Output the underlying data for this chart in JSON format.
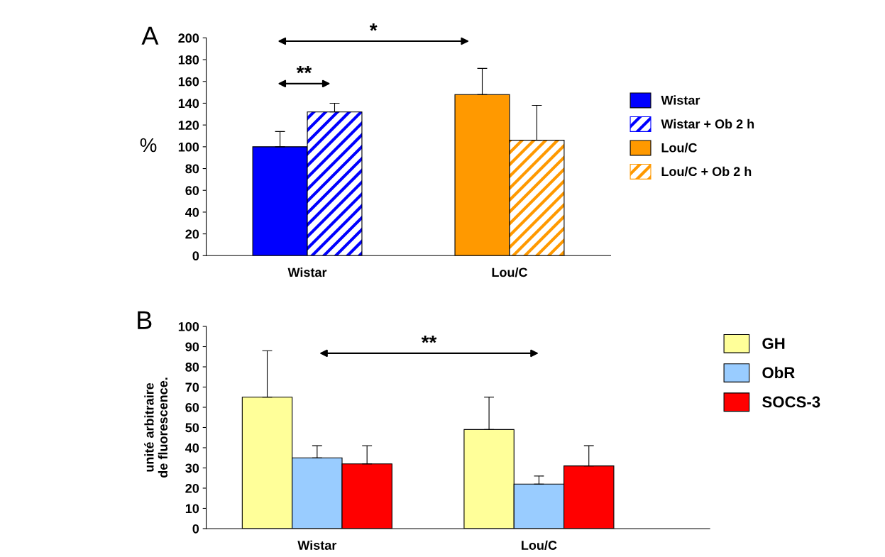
{
  "chart_data": [
    {
      "type": "bar",
      "title": "A",
      "ylabel": "%",
      "categories": [
        "Wistar",
        "Lou/C"
      ],
      "series": [
        {
          "name": "Wistar",
          "color": "#0000ff",
          "values": [
            100,
            null
          ],
          "errors": [
            [
              100,
              114
            ],
            null
          ]
        },
        {
          "name": "Wistar + Ob 2 h",
          "color": "#0000ff",
          "values": [
            132,
            null
          ],
          "errors": [
            [
              132,
              140
            ],
            null
          ]
        },
        {
          "name": "Lou/C",
          "color": "#ff9900",
          "values": [
            null,
            148
          ],
          "errors": [
            null,
            [
              148,
              172
            ]
          ]
        },
        {
          "name": "Lou/C + Ob 2 h",
          "color": "#ff9900",
          "values": [
            null,
            106
          ],
          "errors": [
            null,
            [
              106,
              138
            ]
          ]
        }
      ],
      "ylim": [
        0,
        200
      ],
      "yticks": [
        0,
        20,
        40,
        60,
        80,
        100,
        120,
        140,
        160,
        180,
        200
      ],
      "legend": "right",
      "annotations": [
        "**",
        "*"
      ]
    },
    {
      "type": "bar",
      "title": "B",
      "ylabel": "unité arbitraire\nde fluorescence.",
      "categories": [
        "Wistar",
        "Lou/C"
      ],
      "series": [
        {
          "name": "GH",
          "color": "#ffff99",
          "values": [
            65,
            49
          ],
          "errors": [
            [
              65,
              88
            ],
            [
              49,
              65
            ]
          ]
        },
        {
          "name": "ObR",
          "color": "#99ccff",
          "values": [
            35,
            22
          ],
          "errors": [
            [
              35,
              41
            ],
            [
              22,
              26
            ]
          ]
        },
        {
          "name": "SOCS-3",
          "color": "#ff0000",
          "values": [
            32,
            31
          ],
          "errors": [
            [
              32,
              41
            ],
            [
              31,
              41
            ]
          ]
        }
      ],
      "ylim": [
        0,
        100
      ],
      "yticks": [
        0,
        10,
        20,
        30,
        40,
        50,
        60,
        70,
        80,
        90,
        100
      ],
      "legend": "right",
      "annotations": [
        "**"
      ]
    }
  ]
}
